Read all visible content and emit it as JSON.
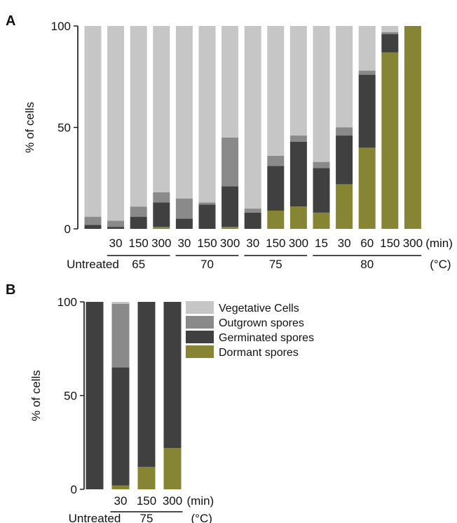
{
  "colors": {
    "vegetative": "#c6c6c6",
    "outgrown": "#8a8a8a",
    "germinated": "#404040",
    "dormant": "#858533",
    "axis": "#111111"
  },
  "chart_data": [
    {
      "panel": "A",
      "type": "bar",
      "stacked": true,
      "ylabel": "% of cells",
      "ylim": [
        0,
        100
      ],
      "yticks": [
        0,
        50,
        100
      ],
      "categories": [
        "",
        "30",
        "150",
        "300",
        "30",
        "150",
        "300",
        "30",
        "150",
        "300",
        "15",
        "30",
        "60",
        "150",
        "300"
      ],
      "time_unit": "(min)",
      "temp_unit": "(°C)",
      "untreated_label": "Untreated",
      "groups": [
        {
          "label": "65",
          "from": 1,
          "to": 3
        },
        {
          "label": "70",
          "from": 4,
          "to": 6
        },
        {
          "label": "75",
          "from": 7,
          "to": 9
        },
        {
          "label": "80",
          "from": 10,
          "to": 14
        }
      ],
      "series": [
        {
          "name": "Dormant spores",
          "color_key": "dormant",
          "values": [
            0,
            0,
            0,
            1,
            0,
            0,
            1,
            0,
            9,
            11,
            8,
            22,
            40,
            87,
            100
          ]
        },
        {
          "name": "Germinated spores",
          "color_key": "germinated",
          "values": [
            2,
            1,
            6,
            12,
            5,
            12,
            20,
            8,
            22,
            32,
            22,
            24,
            36,
            9,
            0
          ]
        },
        {
          "name": "Outgrown spores",
          "color_key": "outgrown",
          "values": [
            4,
            3,
            5,
            5,
            10,
            1,
            24,
            2,
            5,
            3,
            3,
            4,
            2,
            1,
            0
          ]
        },
        {
          "name": "Vegetative Cells",
          "color_key": "vegetative",
          "values": [
            94,
            96,
            89,
            82,
            85,
            87,
            55,
            90,
            64,
            54,
            67,
            50,
            22,
            3,
            0
          ]
        }
      ]
    },
    {
      "panel": "B",
      "type": "bar",
      "stacked": true,
      "ylabel": "% of cells",
      "ylim": [
        0,
        100
      ],
      "yticks": [
        0,
        50,
        100
      ],
      "categories": [
        "",
        "30",
        "150",
        "300"
      ],
      "time_unit": "(min)",
      "temp_unit": "(°C)",
      "untreated_label": "Untreated",
      "groups": [
        {
          "label": "75",
          "from": 1,
          "to": 3
        }
      ],
      "series": [
        {
          "name": "Dormant spores",
          "color_key": "dormant",
          "values": [
            0,
            2,
            12,
            22
          ]
        },
        {
          "name": "Germinated spores",
          "color_key": "germinated",
          "values": [
            100,
            63,
            88,
            78
          ]
        },
        {
          "name": "Outgrown spores",
          "color_key": "outgrown",
          "values": [
            0,
            34,
            0,
            0
          ]
        },
        {
          "name": "Vegetative Cells",
          "color_key": "vegetative",
          "values": [
            0,
            1,
            0,
            0
          ]
        }
      ]
    }
  ],
  "panel_labels": {
    "a": "A",
    "b": "B"
  },
  "legend": [
    {
      "label": "Vegetative Cells",
      "color_key": "vegetative"
    },
    {
      "label": "Outgrown spores",
      "color_key": "outgrown"
    },
    {
      "label": "Germinated spores",
      "color_key": "germinated"
    },
    {
      "label": "Dormant spores",
      "color_key": "dormant"
    }
  ]
}
